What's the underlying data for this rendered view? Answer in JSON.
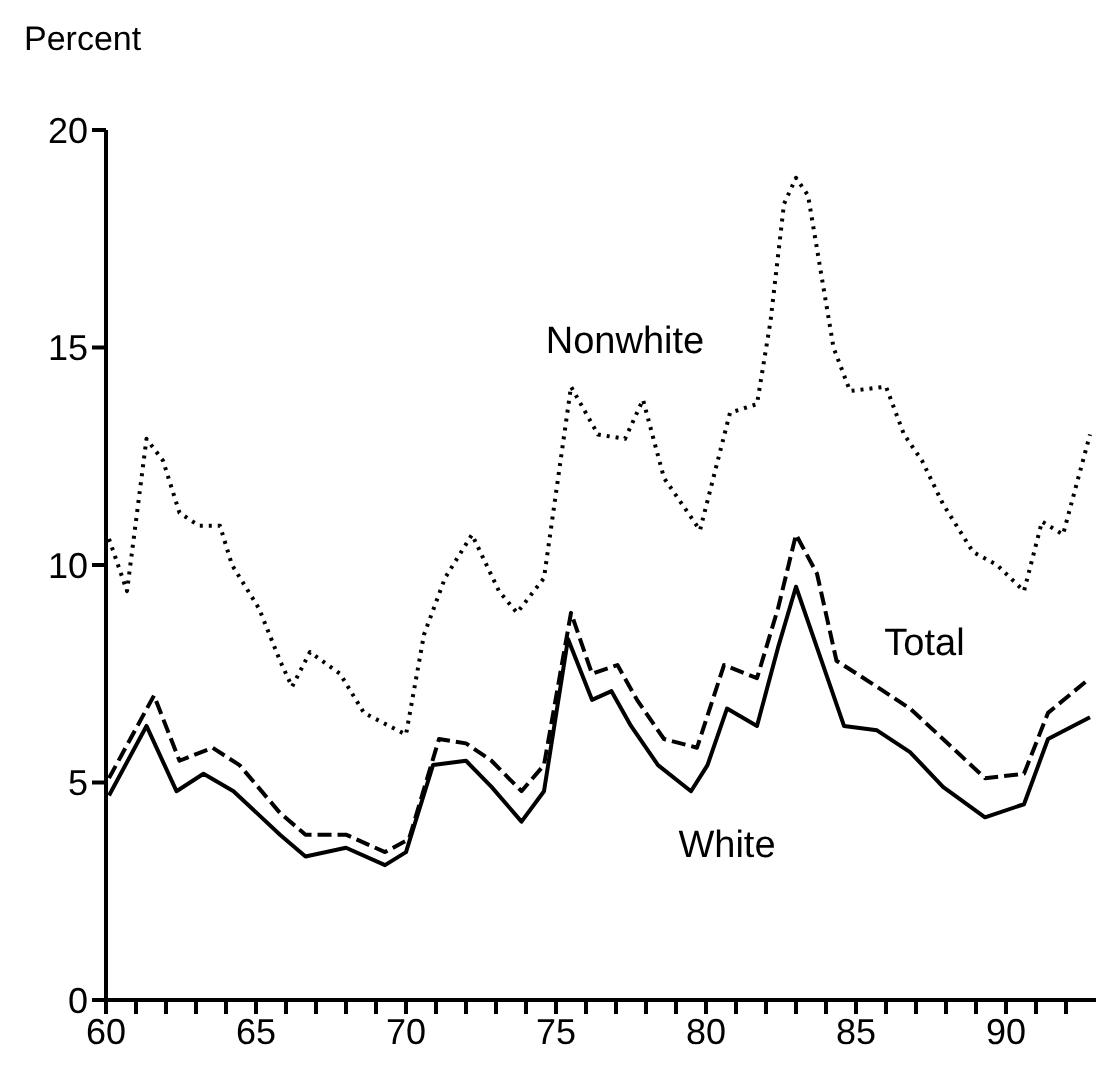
{
  "chart_data": {
    "type": "line",
    "ylabel": "Percent",
    "xlim": [
      60,
      93
    ],
    "ylim": [
      0,
      20
    ],
    "yticks": [
      0,
      5,
      10,
      15,
      20
    ],
    "xticks": [
      60,
      {
        "value": 61,
        "label": null
      },
      {
        "value": 62,
        "label": null
      },
      {
        "value": 63,
        "label": null
      },
      {
        "value": 64,
        "label": null
      },
      65,
      {
        "value": 66,
        "label": null
      },
      {
        "value": 67,
        "label": null
      },
      {
        "value": 68,
        "label": null
      },
      {
        "value": 69,
        "label": null
      },
      70,
      {
        "value": 71,
        "label": null
      },
      {
        "value": 72,
        "label": null
      },
      {
        "value": 73,
        "label": null
      },
      {
        "value": 74,
        "label": null
      },
      75,
      {
        "value": 76,
        "label": null
      },
      {
        "value": 77,
        "label": null
      },
      {
        "value": 78,
        "label": null
      },
      {
        "value": 79,
        "label": null
      },
      80,
      {
        "value": 81,
        "label": null
      },
      {
        "value": 82,
        "label": null
      },
      {
        "value": 83,
        "label": null
      },
      {
        "value": 84,
        "label": null
      },
      85,
      {
        "value": 86,
        "label": null
      },
      {
        "value": 87,
        "label": null
      },
      {
        "value": 88,
        "label": null
      },
      {
        "value": 89,
        "label": null
      },
      90,
      {
        "value": 91,
        "label": null
      },
      {
        "value": 92,
        "label": null
      }
    ],
    "marker": "none",
    "series": [
      {
        "name": "Nonwhite",
        "color": "#000000",
        "line_style": "dotted",
        "x": [
          60.1,
          60.7,
          61.35,
          61.9,
          62.45,
          63.1,
          63.8,
          64.2,
          65.1,
          65.8,
          66.2,
          66.8,
          67.8,
          68.6,
          70,
          70.6,
          71.3,
          72.2,
          73.1,
          73.7,
          74.6,
          75.5,
          76.4,
          77.3,
          77.9,
          78.6,
          79.8,
          80.8,
          81.7,
          82.15,
          82.6,
          83,
          83.4,
          84.25,
          84.8,
          86,
          86.6,
          87.2,
          87.9,
          88.9,
          89.7,
          90.6,
          91.2,
          91.9,
          92.8
        ],
        "values": [
          10.6,
          9.4,
          12.9,
          12.4,
          11.2,
          10.9,
          10.9,
          10,
          9,
          7.8,
          7.2,
          8,
          7.5,
          6.6,
          6.1,
          8.4,
          9.7,
          10.7,
          9.4,
          8.9,
          9.7,
          14.1,
          13,
          12.9,
          13.8,
          12,
          10.8,
          13.5,
          13.7,
          15.6,
          18.3,
          18.9,
          18.5,
          15,
          14,
          14.1,
          13,
          12.4,
          11.4,
          10.3,
          10,
          9.4,
          11,
          10.7,
          13
        ]
      },
      {
        "name": "Total",
        "color": "#000000",
        "line_style": "dashed",
        "x": [
          60.1,
          61.6,
          62.45,
          63.55,
          64.45,
          65.8,
          66.65,
          68,
          69.3,
          70.1,
          71.1,
          72,
          72.85,
          73.85,
          74.6,
          75.5,
          76.2,
          77.05,
          77.7,
          78.6,
          79.7,
          80.6,
          81.7,
          82.4,
          83,
          83.7,
          84.35,
          85.7,
          86.8,
          87.9,
          89.3,
          90.6,
          91.4,
          92.8
        ],
        "values": [
          5.1,
          7,
          5.5,
          5.8,
          5.4,
          4.3,
          3.8,
          3.8,
          3.4,
          3.7,
          6,
          5.9,
          5.5,
          4.8,
          5.4,
          8.9,
          7.5,
          7.7,
          6.9,
          6,
          5.8,
          7.7,
          7.4,
          9,
          10.7,
          9.8,
          7.8,
          7.2,
          6.7,
          6,
          5.1,
          5.2,
          6.6,
          7.4
        ]
      },
      {
        "name": "White",
        "color": "#000000",
        "line_style": "solid",
        "x": [
          60.1,
          61.35,
          62.35,
          63.25,
          64.25,
          65.8,
          66.65,
          68,
          69.3,
          70,
          70.9,
          72,
          72.85,
          73.85,
          74.6,
          75.4,
          76.2,
          76.85,
          77.5,
          78.4,
          79.5,
          80.05,
          80.7,
          81.7,
          82.4,
          83,
          83.7,
          84.6,
          85.7,
          86.8,
          87.9,
          89.3,
          90.6,
          91.4,
          92.8
        ],
        "values": [
          4.7,
          6.3,
          4.8,
          5.2,
          4.8,
          3.8,
          3.3,
          3.5,
          3.1,
          3.4,
          5.4,
          5.5,
          4.9,
          4.1,
          4.8,
          8.3,
          6.9,
          7.1,
          6.3,
          5.4,
          4.8,
          5.4,
          6.7,
          6.3,
          8.1,
          9.5,
          8.1,
          6.3,
          6.2,
          5.7,
          4.9,
          4.2,
          4.5,
          6,
          6.5
        ]
      }
    ]
  }
}
